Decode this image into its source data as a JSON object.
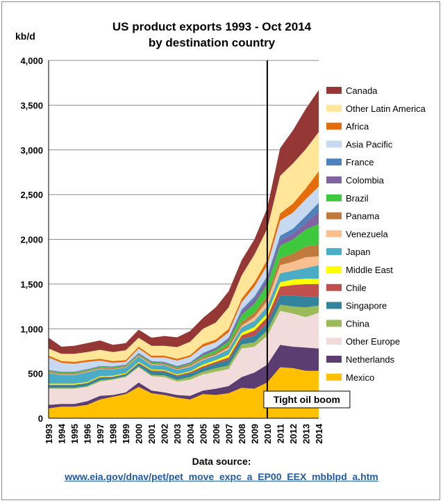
{
  "title_line1": "US product exports 1993 - Oct 2014",
  "title_line2": "by destination country",
  "unit_label": "kb/d",
  "annotation": "Tight oil boom",
  "source_label": "Data source:",
  "source_url": "www.eia.gov/dnav/pet/pet_move_expc_a_EP00_EEX_mbblpd_a.htm",
  "chart_data": {
    "type": "area",
    "stacked": true,
    "title": "US product exports 1993 - Oct 2014 by destination country",
    "ylabel": "kb/d",
    "ylim": [
      0,
      4000
    ],
    "yticks": [
      "0",
      "500",
      "1,000",
      "1,500",
      "2,000",
      "2,500",
      "3,000",
      "3,500",
      "4,000"
    ],
    "grid": true,
    "legend_position": "right",
    "categories": [
      "1993",
      "1994",
      "1995",
      "1996",
      "1997",
      "1998",
      "1999",
      "2000",
      "2001",
      "2002",
      "2003",
      "2004",
      "2005",
      "2006",
      "2007",
      "2008",
      "2009",
      "2010",
      "2011",
      "2012",
      "2013",
      "2014"
    ],
    "vertical_marker": {
      "x": "2010",
      "label": "Tight oil boom"
    },
    "series": [
      {
        "name": "Mexico",
        "color": "#ffc000",
        "values": [
          110,
          130,
          130,
          150,
          210,
          240,
          270,
          350,
          280,
          260,
          230,
          210,
          270,
          260,
          280,
          340,
          330,
          400,
          570,
          560,
          530,
          530
        ]
      },
      {
        "name": "Netherlands",
        "color": "#5b3d72",
        "values": [
          40,
          30,
          30,
          40,
          40,
          20,
          20,
          50,
          30,
          30,
          30,
          40,
          40,
          70,
          80,
          120,
          180,
          200,
          250,
          240,
          260,
          250
        ]
      },
      {
        "name": "Other Europe",
        "color": "#f2dcdb",
        "values": [
          180,
          170,
          170,
          160,
          160,
          170,
          170,
          170,
          160,
          170,
          150,
          180,
          180,
          190,
          190,
          320,
          290,
          320,
          380,
          370,
          340,
          400
        ]
      },
      {
        "name": "China",
        "color": "#9bbb59",
        "values": [
          10,
          10,
          10,
          10,
          15,
          10,
          10,
          10,
          15,
          20,
          20,
          30,
          30,
          40,
          40,
          45,
          50,
          60,
          70,
          80,
          110,
          80
        ]
      },
      {
        "name": "Singapore",
        "color": "#31849b",
        "values": [
          30,
          30,
          30,
          30,
          30,
          20,
          20,
          30,
          40,
          40,
          40,
          40,
          40,
          50,
          60,
          60,
          70,
          80,
          100,
          120,
          120,
          100
        ]
      },
      {
        "name": "Chile",
        "color": "#c0504d",
        "values": [
          5,
          5,
          5,
          5,
          5,
          5,
          5,
          10,
          10,
          10,
          10,
          15,
          20,
          20,
          30,
          40,
          60,
          70,
          100,
          120,
          140,
          140
        ]
      },
      {
        "name": "Middle East",
        "color": "#ffff00",
        "values": [
          10,
          10,
          10,
          10,
          10,
          10,
          10,
          10,
          10,
          10,
          10,
          10,
          20,
          20,
          30,
          30,
          40,
          40,
          50,
          60,
          60,
          60
        ]
      },
      {
        "name": "Japan",
        "color": "#4bacc6",
        "values": [
          120,
          100,
          100,
          110,
          80,
          70,
          60,
          60,
          50,
          50,
          50,
          50,
          50,
          50,
          60,
          60,
          70,
          80,
          100,
          100,
          120,
          150
        ]
      },
      {
        "name": "Venezuela",
        "color": "#fabf8f",
        "values": [
          5,
          5,
          5,
          5,
          5,
          5,
          5,
          5,
          10,
          5,
          5,
          10,
          10,
          10,
          20,
          20,
          40,
          60,
          90,
          100,
          120,
          100
        ]
      },
      {
        "name": "Panama",
        "color": "#c07a3e",
        "values": [
          10,
          10,
          10,
          10,
          10,
          10,
          10,
          10,
          10,
          10,
          15,
          15,
          20,
          20,
          30,
          40,
          50,
          60,
          80,
          90,
          120,
          130
        ]
      },
      {
        "name": "Brazil",
        "color": "#3ec83e",
        "values": [
          10,
          10,
          10,
          10,
          10,
          10,
          10,
          10,
          10,
          10,
          10,
          10,
          20,
          30,
          40,
          80,
          100,
          130,
          140,
          160,
          190,
          230
        ]
      },
      {
        "name": "Colombia",
        "color": "#8064a2",
        "values": [
          5,
          5,
          5,
          5,
          5,
          5,
          5,
          10,
          10,
          10,
          10,
          10,
          20,
          20,
          30,
          40,
          50,
          60,
          60,
          60,
          80,
          140
        ]
      },
      {
        "name": "France",
        "color": "#4f81bd",
        "values": [
          5,
          5,
          5,
          5,
          5,
          5,
          5,
          5,
          5,
          5,
          5,
          5,
          10,
          10,
          10,
          20,
          30,
          30,
          50,
          60,
          70,
          100
        ]
      },
      {
        "name": "Asia Pacific",
        "color": "#c6d9f0",
        "values": [
          140,
          100,
          90,
          80,
          60,
          40,
          30,
          50,
          40,
          50,
          60,
          60,
          70,
          60,
          60,
          80,
          110,
          120,
          170,
          180,
          190,
          180
        ]
      },
      {
        "name": "Africa",
        "color": "#e46c0a",
        "values": [
          20,
          20,
          20,
          20,
          20,
          20,
          20,
          20,
          20,
          20,
          20,
          20,
          30,
          30,
          40,
          40,
          50,
          60,
          80,
          100,
          120,
          170
        ]
      },
      {
        "name": "Other Latin America",
        "color": "#ffe699",
        "values": [
          80,
          80,
          90,
          90,
          100,
          100,
          110,
          100,
          110,
          110,
          130,
          150,
          170,
          190,
          240,
          260,
          310,
          350,
          420,
          450,
          440,
          440
        ]
      },
      {
        "name": "Canada",
        "color": "#953735",
        "values": [
          120,
          80,
          90,
          100,
          105,
          80,
          80,
          90,
          90,
          110,
          110,
          120,
          120,
          170,
          180,
          170,
          170,
          230,
          310,
          370,
          450,
          470
        ]
      }
    ]
  }
}
